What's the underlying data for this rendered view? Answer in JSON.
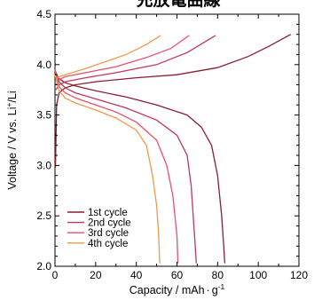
{
  "chart_data": {
    "type": "line",
    "title": "充放電曲線",
    "xlabel": {
      "prefix": "Capacity / mAh",
      "unit_tail": "g",
      "unit_tail_sup": "-1"
    },
    "ylabel": {
      "prefix": "Voltage / V vs. Li",
      "sup": "+",
      "suffix": "/Li"
    },
    "xlim": [
      0,
      120
    ],
    "ylim": [
      2.0,
      4.5
    ],
    "xticks": [
      0,
      20,
      40,
      60,
      80,
      100,
      120
    ],
    "yticks": [
      2.0,
      2.5,
      3.0,
      3.5,
      4.0,
      4.5
    ],
    "x_tick_labels": [
      "0",
      "20",
      "40",
      "60",
      "80",
      "100",
      "120"
    ],
    "y_tick_labels": [
      "2.0",
      "2.5",
      "3.0",
      "3.5",
      "4.0",
      "4.5"
    ],
    "grid": false,
    "legend_position": "bottom-left",
    "series": [
      {
        "name": "1st cycle",
        "color": "#8b1e2e",
        "charge": [
          [
            0.2,
            2.98
          ],
          [
            0.8,
            3.6
          ],
          [
            2,
            3.72
          ],
          [
            5,
            3.77
          ],
          [
            10,
            3.8
          ],
          [
            20,
            3.83
          ],
          [
            40,
            3.87
          ],
          [
            60,
            3.9
          ],
          [
            80,
            3.97
          ],
          [
            95,
            4.08
          ],
          [
            105,
            4.18
          ],
          [
            116,
            4.3
          ]
        ],
        "discharge": [
          [
            0,
            3.92
          ],
          [
            2,
            3.86
          ],
          [
            5,
            3.82
          ],
          [
            10,
            3.79
          ],
          [
            20,
            3.74
          ],
          [
            35,
            3.68
          ],
          [
            50,
            3.6
          ],
          [
            65,
            3.5
          ],
          [
            72,
            3.38
          ],
          [
            77,
            3.2
          ],
          [
            80,
            2.9
          ],
          [
            82,
            2.5
          ],
          [
            83,
            2.2
          ],
          [
            83.5,
            2.03
          ]
        ]
      },
      {
        "name": "2nd cycle",
        "color": "#c0365e",
        "charge": [
          [
            0.5,
            3.75
          ],
          [
            2,
            3.8
          ],
          [
            5,
            3.83
          ],
          [
            15,
            3.87
          ],
          [
            30,
            3.92
          ],
          [
            50,
            4.0
          ],
          [
            65,
            4.12
          ],
          [
            79,
            4.29
          ]
        ],
        "discharge": [
          [
            0,
            3.95
          ],
          [
            2,
            3.83
          ],
          [
            5,
            3.77
          ],
          [
            10,
            3.72
          ],
          [
            20,
            3.66
          ],
          [
            35,
            3.57
          ],
          [
            50,
            3.45
          ],
          [
            60,
            3.3
          ],
          [
            65,
            3.1
          ],
          [
            67,
            2.8
          ],
          [
            68,
            2.5
          ],
          [
            69,
            2.2
          ],
          [
            69.5,
            2.03
          ]
        ]
      },
      {
        "name": "3rd cycle",
        "color": "#e8506a",
        "charge": [
          [
            0.5,
            3.8
          ],
          [
            2,
            3.85
          ],
          [
            5,
            3.88
          ],
          [
            15,
            3.92
          ],
          [
            30,
            3.98
          ],
          [
            45,
            4.07
          ],
          [
            57,
            4.16
          ],
          [
            66,
            4.29
          ]
        ],
        "discharge": [
          [
            0,
            3.95
          ],
          [
            2,
            3.78
          ],
          [
            5,
            3.72
          ],
          [
            10,
            3.67
          ],
          [
            20,
            3.6
          ],
          [
            30,
            3.53
          ],
          [
            40,
            3.43
          ],
          [
            50,
            3.25
          ],
          [
            55,
            3.0
          ],
          [
            58,
            2.7
          ],
          [
            60,
            2.3
          ],
          [
            60.5,
            2.03
          ]
        ]
      },
      {
        "name": "4th cycle",
        "color": "#ef9a4a",
        "charge": [
          [
            0.5,
            3.85
          ],
          [
            2,
            3.88
          ],
          [
            5,
            3.9
          ],
          [
            15,
            3.96
          ],
          [
            25,
            4.03
          ],
          [
            35,
            4.1
          ],
          [
            45,
            4.2
          ],
          [
            52,
            4.29
          ]
        ],
        "discharge": [
          [
            0,
            3.9
          ],
          [
            2,
            3.74
          ],
          [
            5,
            3.67
          ],
          [
            10,
            3.62
          ],
          [
            20,
            3.55
          ],
          [
            30,
            3.47
          ],
          [
            40,
            3.35
          ],
          [
            45,
            3.2
          ],
          [
            48,
            2.9
          ],
          [
            50,
            2.6
          ],
          [
            51,
            2.3
          ],
          [
            51.5,
            2.03
          ]
        ]
      }
    ]
  }
}
